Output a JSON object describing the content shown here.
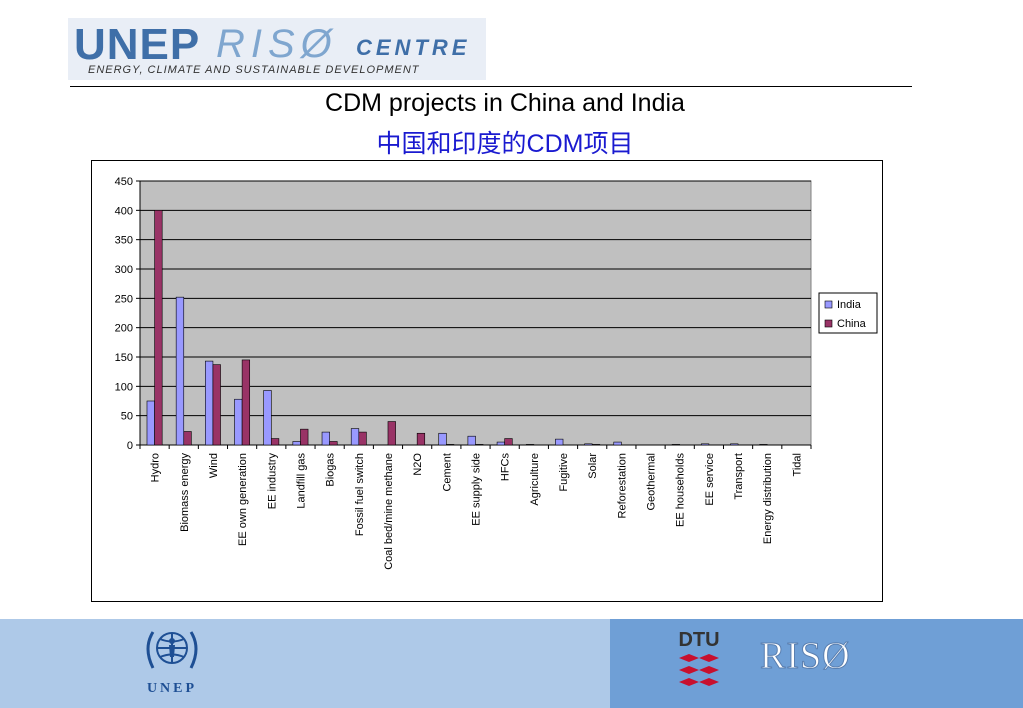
{
  "header": {
    "logo_unep": "UNEP",
    "logo_riso": "RISØ",
    "logo_centre": "CENTRE",
    "logo_tagline": "ENERGY, CLIMATE AND SUSTAINABLE DEVELOPMENT"
  },
  "slide": {
    "title_en": "CDM projects in China and India",
    "title_zh": "中国和印度的CDM项目"
  },
  "chart_data": {
    "type": "bar",
    "title": "",
    "xlabel": "",
    "ylabel": "",
    "ylim": [
      0,
      450
    ],
    "yticks": [
      0,
      50,
      100,
      150,
      200,
      250,
      300,
      350,
      400,
      450
    ],
    "grid": true,
    "legend_position": "right",
    "categories": [
      "Hydro",
      "Biomass energy",
      "Wind",
      "EE own generation",
      "EE industry",
      "Landfill gas",
      "Biogas",
      "Fossil fuel switch",
      "Coal bed/mine methane",
      "N2O",
      "Cement",
      "EE supply side",
      "HFCs",
      "Agriculture",
      "Fugitive",
      "Solar",
      "Reforestation",
      "Geothermal",
      "EE households",
      "EE service",
      "Transport",
      "Energy distribution",
      "Tidal"
    ],
    "series": [
      {
        "name": "India",
        "color": "#9999ff",
        "values": [
          75,
          252,
          143,
          78,
          93,
          6,
          22,
          28,
          0,
          0,
          20,
          15,
          5,
          1,
          10,
          2,
          5,
          0,
          1,
          2,
          2,
          1,
          0
        ]
      },
      {
        "name": "China",
        "color": "#993366",
        "values": [
          400,
          23,
          137,
          145,
          11,
          27,
          6,
          22,
          40,
          20,
          1,
          1,
          11,
          0,
          0,
          1,
          0,
          0,
          0,
          0,
          0,
          0,
          0
        ]
      }
    ]
  },
  "footer": {
    "unep_text": "UNEP",
    "dtu_text": "DTU",
    "riso_text": "RISØ"
  }
}
